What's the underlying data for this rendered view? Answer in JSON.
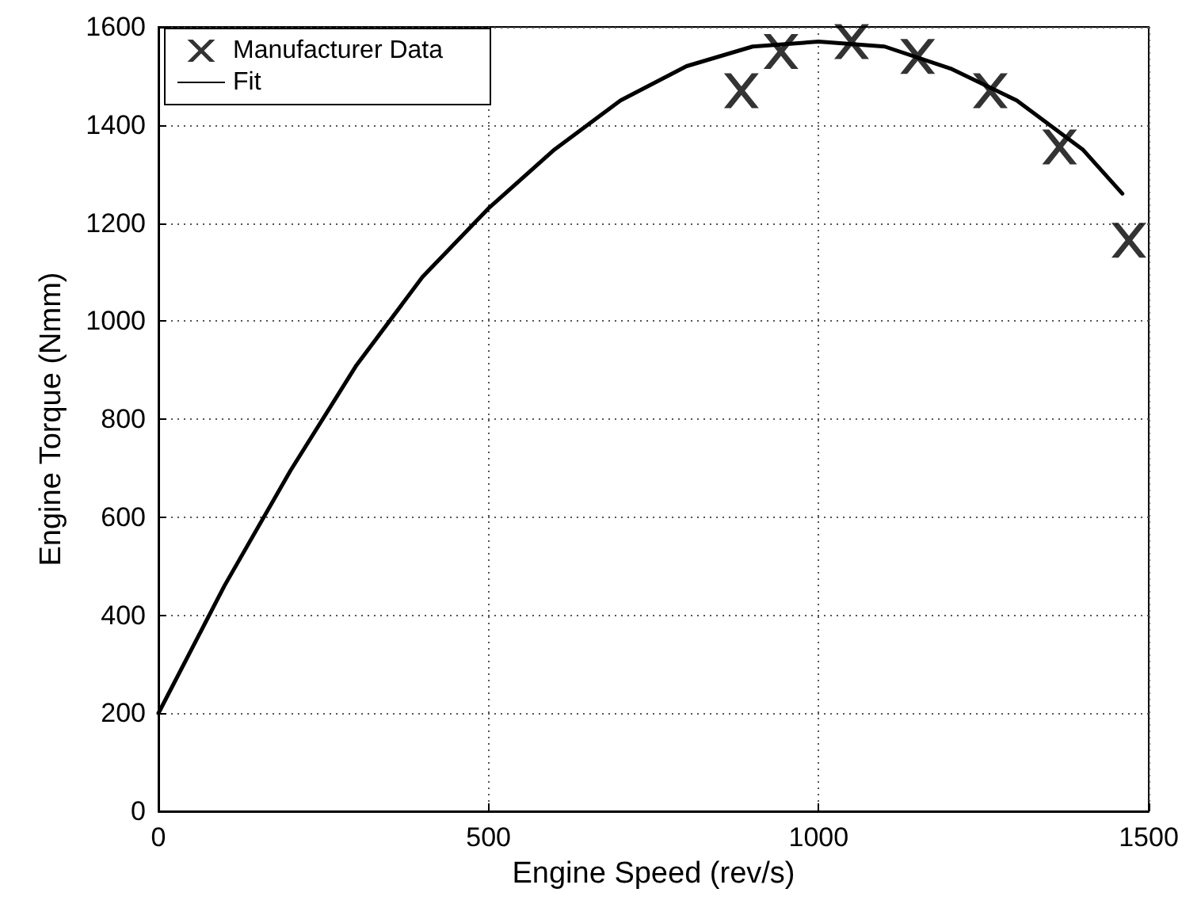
{
  "chart_data": {
    "type": "scatter",
    "xlabel": "Engine Speed (rev/s)",
    "ylabel": "Engine Torque (Nmm)",
    "xlim": [
      0,
      1500
    ],
    "xticks": [
      0,
      500,
      1000,
      1500
    ],
    "ylim": [
      0,
      1600
    ],
    "yticks": [
      0,
      200,
      400,
      600,
      800,
      1000,
      1200,
      1400,
      1600
    ],
    "grid": true,
    "legend": "top left",
    "series": [
      {
        "name": "Manufacturer Data",
        "marker": "cross",
        "color": "#000000",
        "x": [
          883,
          943,
          1050,
          1150,
          1260,
          1365,
          1470
        ],
        "values": [
          1470,
          1550,
          1570,
          1540,
          1470,
          1355,
          1165
        ]
      },
      {
        "name": "Fit",
        "type": "line",
        "marker": "none",
        "line_style": "solid",
        "color": "#000000",
        "x": [
          0,
          100,
          200,
          300,
          400,
          500,
          600,
          700,
          800,
          900,
          1000,
          1100,
          1200,
          1300,
          1400,
          1460
        ],
        "values": [
          200,
          460,
          695,
          910,
          1090,
          1230,
          1350,
          1450,
          1520,
          1560,
          1570,
          1560,
          1515,
          1450,
          1350,
          1260
        ]
      }
    ]
  }
}
